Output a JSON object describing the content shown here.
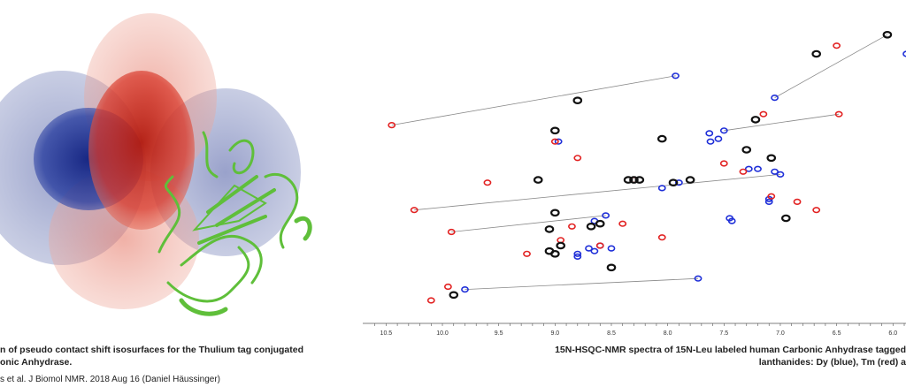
{
  "left_figure": {
    "caption_line1": "n of pseudo contact shift isosurfaces for the Thulium tag conjugated",
    "caption_line2": "onic Anhydrase.",
    "credit": "s et al. J Biomol NMR. 2018 Aug 16 (Daniel Häussinger)",
    "colors": {
      "positive_lobe": "#d8382a",
      "negative_lobe": "#2a3fa0",
      "protein": "#5fbf3a"
    }
  },
  "spectrum": {
    "caption_line1": "15N-HSQC-NMR spectra of 15N-Leu labeled human Carbonic Anhydrase tagged",
    "caption_line2": "lanthanides: Dy (blue), Tm (red) a",
    "colors": {
      "dy": "#1f2fd8",
      "tm": "#e22222",
      "ref": "#111111",
      "line": "#888888"
    }
  },
  "chart_data": {
    "type": "scatter",
    "title": "",
    "xlabel": "",
    "ylabel": "",
    "x_reversed": true,
    "xlim": [
      10.55,
      5.9
    ],
    "ylim": [
      0,
      1
    ],
    "x_ticks": [
      "10.5",
      "10.0",
      "9.5",
      "9.0",
      "8.5",
      "8.0",
      "7.5",
      "7.0",
      "6.5",
      "6.0"
    ],
    "x_tick_values": [
      10.5,
      10.0,
      9.5,
      9.0,
      8.5,
      8.0,
      7.5,
      7.0,
      6.5,
      6.0
    ],
    "series": [
      {
        "name": "Dy (blue)",
        "points": [
          [
            7.93,
            0.82
          ],
          [
            7.05,
            0.74
          ],
          [
            7.63,
            0.61
          ],
          [
            7.62,
            0.58
          ],
          [
            7.55,
            0.59
          ],
          [
            7.5,
            0.62
          ],
          [
            8.97,
            0.58
          ],
          [
            7.28,
            0.48
          ],
          [
            7.2,
            0.48
          ],
          [
            7.05,
            0.47
          ],
          [
            7.0,
            0.46
          ],
          [
            8.05,
            0.41
          ],
          [
            7.9,
            0.43
          ],
          [
            7.1,
            0.37
          ],
          [
            8.55,
            0.31
          ],
          [
            8.65,
            0.29
          ],
          [
            7.45,
            0.3
          ],
          [
            7.43,
            0.29
          ],
          [
            8.6,
            0.2
          ],
          [
            8.65,
            0.18
          ],
          [
            8.7,
            0.19
          ],
          [
            8.8,
            0.17
          ],
          [
            8.5,
            0.19
          ],
          [
            8.8,
            0.16
          ],
          [
            7.73,
            0.08
          ],
          [
            9.8,
            0.04
          ],
          [
            5.88,
            0.9
          ],
          [
            7.1,
            0.36
          ]
        ]
      },
      {
        "name": "Tm (red)",
        "points": [
          [
            6.5,
            0.93
          ],
          [
            10.45,
            0.64
          ],
          [
            7.15,
            0.68
          ],
          [
            6.48,
            0.68
          ],
          [
            9.0,
            0.58
          ],
          [
            8.8,
            0.52
          ],
          [
            9.6,
            0.43
          ],
          [
            7.33,
            0.47
          ],
          [
            8.3,
            0.44
          ],
          [
            7.5,
            0.5
          ],
          [
            10.25,
            0.33
          ],
          [
            6.85,
            0.36
          ],
          [
            7.08,
            0.38
          ],
          [
            6.68,
            0.33
          ],
          [
            8.85,
            0.27
          ],
          [
            9.92,
            0.25
          ],
          [
            8.05,
            0.23
          ],
          [
            8.95,
            0.22
          ],
          [
            8.6,
            0.2
          ],
          [
            9.25,
            0.17
          ],
          [
            8.4,
            0.28
          ],
          [
            10.1,
            0.0
          ],
          [
            9.95,
            0.05
          ]
        ]
      },
      {
        "name": "",
        "points": [
          [
            6.05,
            0.97
          ],
          [
            6.68,
            0.9
          ],
          [
            8.8,
            0.73
          ],
          [
            7.22,
            0.66
          ],
          [
            9.0,
            0.62
          ],
          [
            8.05,
            0.59
          ],
          [
            7.3,
            0.55
          ],
          [
            7.08,
            0.52
          ],
          [
            9.15,
            0.44
          ],
          [
            7.8,
            0.44
          ],
          [
            8.3,
            0.44
          ],
          [
            8.25,
            0.44
          ],
          [
            8.35,
            0.44
          ],
          [
            9.0,
            0.32
          ],
          [
            8.6,
            0.28
          ],
          [
            9.05,
            0.26
          ],
          [
            6.95,
            0.3
          ],
          [
            8.95,
            0.2
          ],
          [
            9.05,
            0.18
          ],
          [
            9.0,
            0.17
          ],
          [
            8.5,
            0.12
          ],
          [
            9.9,
            0.02
          ],
          [
            8.68,
            0.27
          ],
          [
            7.95,
            0.43
          ]
        ]
      }
    ],
    "connectors": [
      [
        [
          10.45,
          0.64
        ],
        [
          7.93,
          0.82
        ]
      ],
      [
        [
          7.05,
          0.74
        ],
        [
          6.05,
          0.97
        ]
      ],
      [
        [
          7.5,
          0.62
        ],
        [
          6.48,
          0.68
        ]
      ],
      [
        [
          10.25,
          0.33
        ],
        [
          7.0,
          0.46
        ]
      ],
      [
        [
          9.92,
          0.25
        ],
        [
          8.55,
          0.31
        ]
      ],
      [
        [
          9.8,
          0.04
        ],
        [
          7.73,
          0.08
        ]
      ]
    ]
  }
}
